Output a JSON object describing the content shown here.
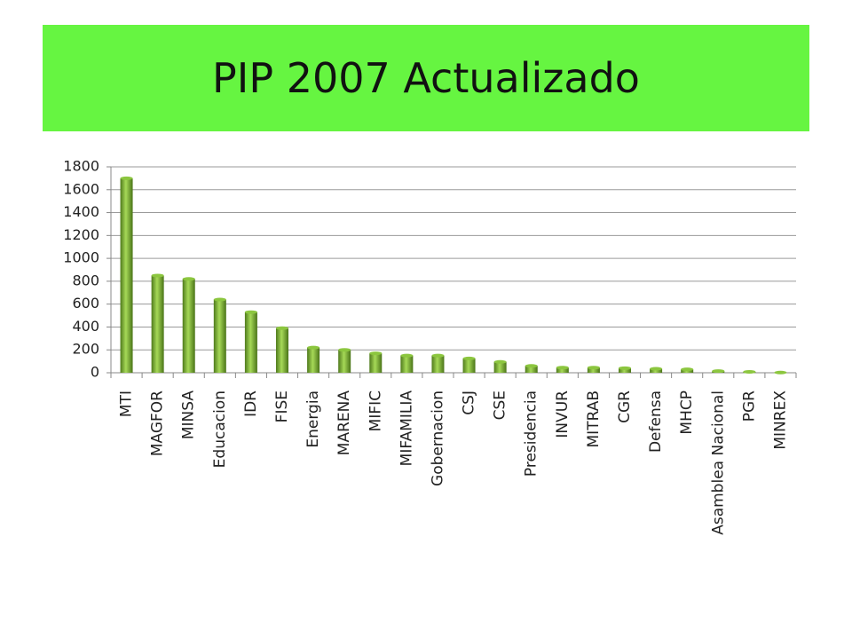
{
  "chart_data": {
    "type": "bar",
    "title": "PIP 2007 Actualizado",
    "categories": [
      "MTI",
      "MAGFOR",
      "MINSA",
      "Educacion",
      "IDR",
      "FISE",
      "Energia",
      "MARENA",
      "MIFIC",
      "MIFAMILIA",
      "Gobernacion",
      "CSJ",
      "CSE",
      "Presidencia",
      "INVUR",
      "MITRAB",
      "CGR",
      "Defensa",
      "MHCP",
      "Asamblea Nacional",
      "PGR",
      "MINREX"
    ],
    "values": [
      1700,
      850,
      820,
      640,
      530,
      390,
      220,
      200,
      170,
      150,
      150,
      125,
      95,
      60,
      45,
      45,
      40,
      35,
      30,
      15,
      8,
      2
    ],
    "color": "#8cc63f",
    "ylim": [
      0,
      1800
    ],
    "yticks": [
      0,
      200,
      400,
      600,
      800,
      1000,
      1200,
      1400,
      1600,
      1800
    ],
    "grid": true
  }
}
